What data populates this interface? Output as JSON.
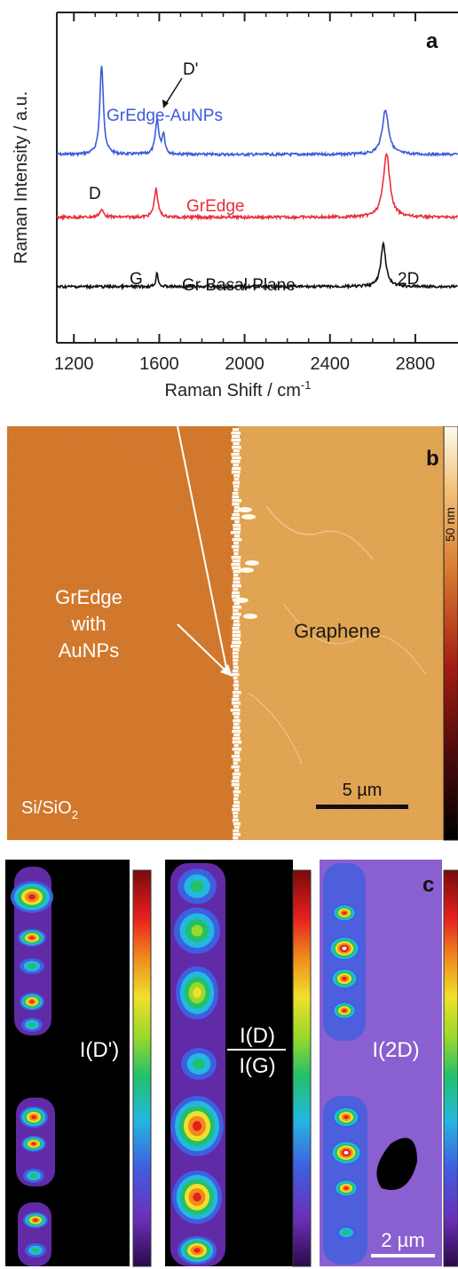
{
  "chart_data": [
    {
      "type": "line",
      "panel_label": "a",
      "xlabel": "Raman Shift / cm",
      "xlabel_superscript": "-1",
      "ylabel": "Raman Intensity / a.u.",
      "xlim": [
        1120,
        3000
      ],
      "x_ticks": [
        "1200",
        "1600",
        "2000",
        "2400",
        "2800"
      ],
      "x_tick_values": [
        1200,
        1600,
        2000,
        2400,
        2800
      ],
      "y_ticks_shown": false,
      "series": [
        {
          "name": "GrEdge-AuNPs",
          "color": "#3b5bdb",
          "baseline_frac": 0.43,
          "peaks": [
            {
              "x": 1330,
              "height": 1.0,
              "width": 10
            },
            {
              "x": 1590,
              "height": 0.38,
              "width": 10
            },
            {
              "x": 1620,
              "height": 0.22,
              "width": 8
            },
            {
              "x": 2660,
              "height": 0.5,
              "width": 18
            }
          ]
        },
        {
          "name": "GrEdge",
          "color": "#e8303c",
          "baseline_frac": 0.62,
          "peaks": [
            {
              "x": 1330,
              "height": 0.08,
              "width": 12
            },
            {
              "x": 1585,
              "height": 0.32,
              "width": 10
            },
            {
              "x": 2665,
              "height": 0.72,
              "width": 18
            }
          ]
        },
        {
          "name": "Gr Basal Plane",
          "color": "#111111",
          "baseline_frac": 0.83,
          "peaks": [
            {
              "x": 1590,
              "height": 0.16,
              "width": 6
            },
            {
              "x": 2650,
              "height": 0.48,
              "width": 14
            }
          ]
        }
      ],
      "annotations": [
        "D'",
        "D",
        "G",
        "2D"
      ]
    }
  ],
  "panel_b": {
    "label": "b",
    "text_left_top": "GrEdge",
    "text_left_mid": "with",
    "text_left_bot": "AuNPs",
    "text_right": "Graphene",
    "text_substrate": "Si/SiO",
    "substrate_subscript": "2",
    "scale_bar_label": "5 µm",
    "colorbar_label": "50 nm",
    "colors": {
      "substrate": "#d1782c",
      "graphene": "#e0a452",
      "edge": "#fffaf0"
    }
  },
  "panel_c": {
    "label": "c",
    "maps": [
      {
        "label": "I(D')"
      },
      {
        "label_num": "I(D)",
        "label_den": "I(G)"
      },
      {
        "label": "I(2D)"
      }
    ],
    "scale_bar_label": "2 µm"
  }
}
